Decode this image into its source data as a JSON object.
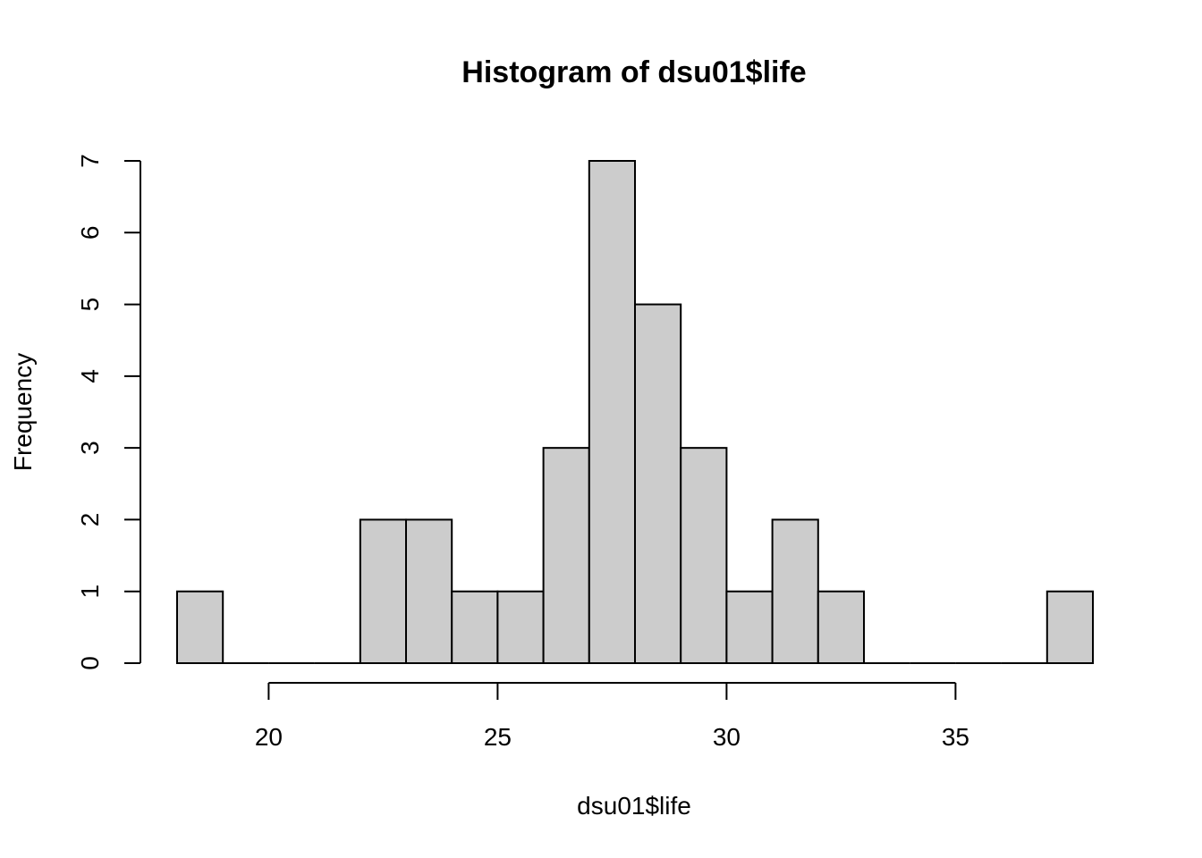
{
  "chart_data": {
    "type": "bar",
    "title": "Histogram of dsu01$life",
    "xlabel": "dsu01$life",
    "ylabel": "Frequency",
    "bins": [
      {
        "start": 18,
        "end": 19,
        "count": 1
      },
      {
        "start": 19,
        "end": 20,
        "count": 0
      },
      {
        "start": 20,
        "end": 21,
        "count": 0
      },
      {
        "start": 21,
        "end": 22,
        "count": 0
      },
      {
        "start": 22,
        "end": 23,
        "count": 2
      },
      {
        "start": 23,
        "end": 24,
        "count": 2
      },
      {
        "start": 24,
        "end": 25,
        "count": 1
      },
      {
        "start": 25,
        "end": 26,
        "count": 1
      },
      {
        "start": 26,
        "end": 27,
        "count": 3
      },
      {
        "start": 27,
        "end": 28,
        "count": 7
      },
      {
        "start": 28,
        "end": 29,
        "count": 5
      },
      {
        "start": 29,
        "end": 30,
        "count": 3
      },
      {
        "start": 30,
        "end": 31,
        "count": 1
      },
      {
        "start": 31,
        "end": 32,
        "count": 2
      },
      {
        "start": 32,
        "end": 33,
        "count": 1
      },
      {
        "start": 33,
        "end": 34,
        "count": 0
      },
      {
        "start": 34,
        "end": 35,
        "count": 0
      },
      {
        "start": 35,
        "end": 36,
        "count": 0
      },
      {
        "start": 36,
        "end": 37,
        "count": 0
      },
      {
        "start": 37,
        "end": 38,
        "count": 1
      }
    ],
    "xlim": [
      18,
      38
    ],
    "ylim": [
      0,
      7
    ],
    "x_ticks": [
      20,
      25,
      30,
      35
    ],
    "y_ticks": [
      0,
      1,
      2,
      3,
      4,
      5,
      6,
      7
    ],
    "bar_color": "#cccccc",
    "grid": false
  }
}
